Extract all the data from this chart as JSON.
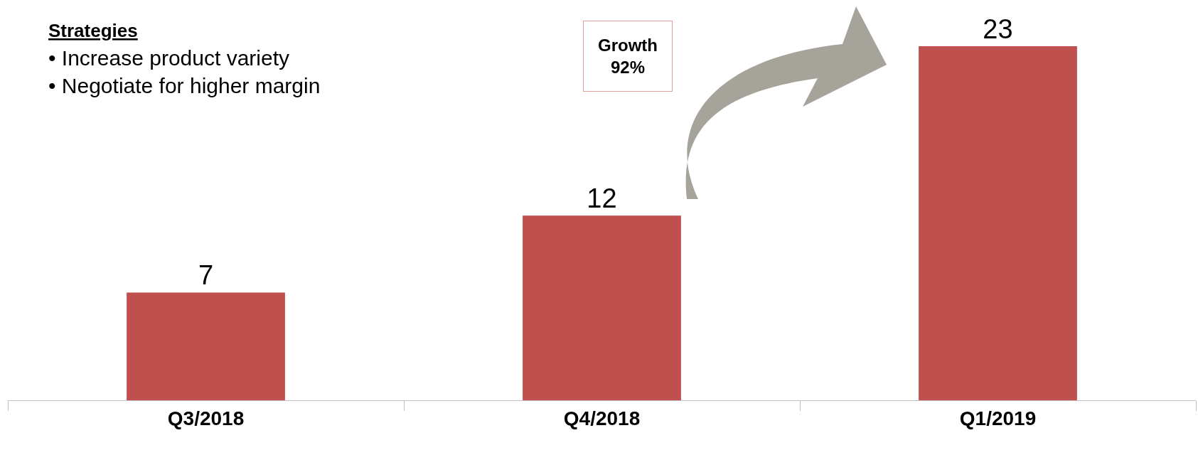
{
  "chart_data": {
    "type": "bar",
    "categories": [
      "Q3/2018",
      "Q4/2018",
      "Q1/2019"
    ],
    "values": [
      7,
      12,
      23
    ],
    "color": "#c0504d",
    "data_labels": true,
    "annotations": [
      "Strategies",
      "• Increase product variety\n• Negotiate for higher margin",
      "Growth\n92%"
    ]
  }
}
